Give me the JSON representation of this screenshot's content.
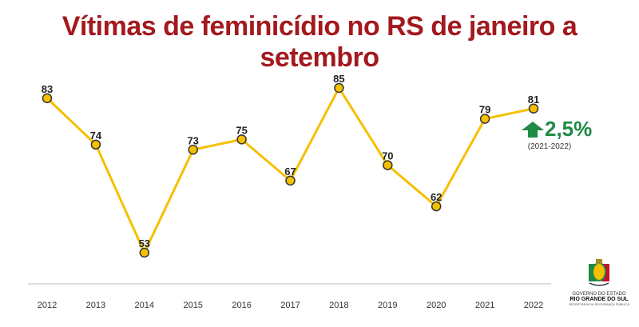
{
  "chart_data": {
    "type": "line",
    "title": "Vítimas de feminicídio no RS de janeiro a setembro",
    "categories": [
      "2012",
      "2013",
      "2014",
      "2015",
      "2016",
      "2017",
      "2018",
      "2019",
      "2020",
      "2021",
      "2022"
    ],
    "values": [
      83,
      74,
      53,
      73,
      75,
      67,
      85,
      70,
      62,
      79,
      81
    ],
    "xlabel": "",
    "ylabel": "",
    "ylim": [
      45,
      90
    ],
    "grid": false,
    "annotation": {
      "value": "2,5%",
      "period": "(2021-2022)",
      "direction": "up"
    },
    "colors": {
      "line": "#f5c000",
      "marker": "#f5c000",
      "marker_edge": "#333333",
      "title": "#a3191e",
      "annotation": "#1e8a44"
    }
  },
  "logo": {
    "line1": "GOVERNO DO ESTADO",
    "line2": "RIO GRANDE DO SUL",
    "line3": "SECRETARIA DA SEGURANÇA PÚBLICA"
  }
}
